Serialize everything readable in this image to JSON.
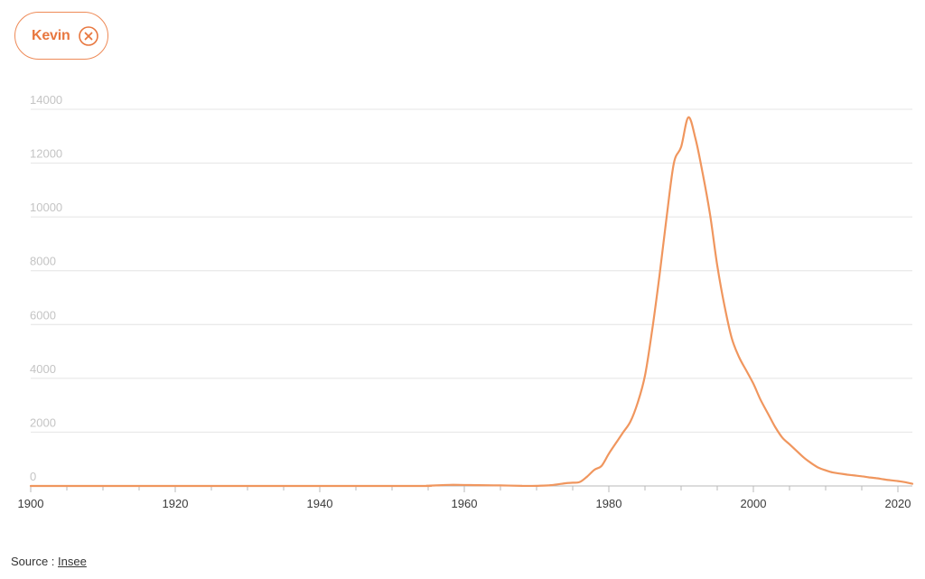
{
  "filter_chip": {
    "label": "Kevin",
    "close_icon": "close-circle-icon",
    "color": "#e8773f"
  },
  "source": {
    "prefix": "Source : ",
    "link_text": "Insee"
  },
  "chart_data": {
    "type": "line",
    "title": "",
    "xlabel": "",
    "ylabel": "",
    "xlim": [
      1900,
      2022
    ],
    "ylim": [
      0,
      14000
    ],
    "x_ticks": [
      1900,
      1920,
      1940,
      1960,
      1980,
      2000,
      2020
    ],
    "y_ticks": [
      0,
      2000,
      4000,
      6000,
      8000,
      10000,
      12000,
      14000
    ],
    "grid": true,
    "series": [
      {
        "color": "#f0965e",
        "x": [
          1900,
          1950,
          1955,
          1958,
          1962,
          1965,
          1968,
          1970,
          1972,
          1974,
          1975,
          1976,
          1977,
          1978,
          1979,
          1980,
          1981,
          1982,
          1983,
          1984,
          1985,
          1986,
          1987,
          1988,
          1989,
          1990,
          1991,
          1992,
          1993,
          1994,
          1995,
          1996,
          1997,
          1998,
          1999,
          2000,
          2001,
          2002,
          2003,
          2004,
          2005,
          2006,
          2007,
          2008,
          2009,
          2010,
          2011,
          2012,
          2013,
          2014,
          2015,
          2016,
          2017,
          2018,
          2019,
          2020,
          2021,
          2022
        ],
        "y": [
          0,
          0,
          10,
          40,
          30,
          20,
          5,
          5,
          30,
          100,
          120,
          150,
          350,
          600,
          750,
          1200,
          1600,
          2000,
          2400,
          3100,
          4100,
          5800,
          7800,
          10000,
          12000,
          12600,
          13700,
          12900,
          11600,
          10100,
          8200,
          6700,
          5500,
          4800,
          4300,
          3800,
          3200,
          2700,
          2200,
          1800,
          1550,
          1300,
          1050,
          850,
          680,
          580,
          500,
          460,
          420,
          390,
          360,
          320,
          290,
          250,
          210,
          180,
          140,
          80
        ]
      }
    ]
  }
}
